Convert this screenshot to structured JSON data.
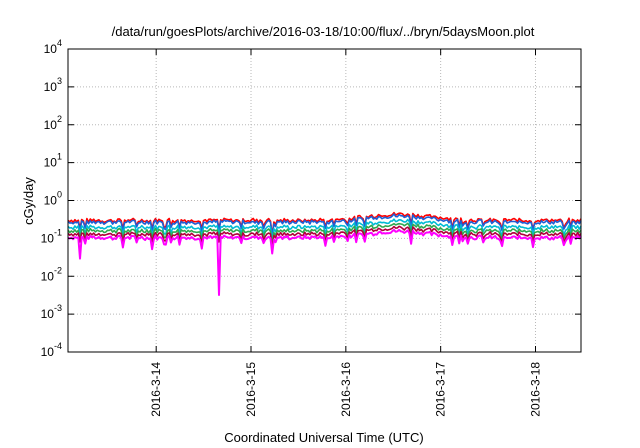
{
  "chart_data": {
    "type": "line",
    "title": "/data/run/goesPlots/archive/2016-03-18/10:00/flux/../bryn/5daysMoon.plot",
    "xlabel": "Coordinated Universal Time (UTC)",
    "ylabel": "cGy/day",
    "yscale": "log",
    "ylim": [
      0.0001,
      10000
    ],
    "xlim": [
      -0.93,
      4.48
    ],
    "x_origin": "2016-03-14",
    "grid": true,
    "y_ticks": [
      {
        "base": "10",
        "exp": "-4",
        "value": 0.0001
      },
      {
        "base": "10",
        "exp": "-3",
        "value": 0.001
      },
      {
        "base": "10",
        "exp": "-2",
        "value": 0.01
      },
      {
        "base": "10",
        "exp": "-1",
        "value": 0.1
      },
      {
        "base": "10",
        "exp": "0",
        "value": 1
      },
      {
        "base": "10",
        "exp": "1",
        "value": 10
      },
      {
        "base": "10",
        "exp": "2",
        "value": 100
      },
      {
        "base": "10",
        "exp": "3",
        "value": 1000
      },
      {
        "base": "10",
        "exp": "4",
        "value": 10000
      }
    ],
    "x_ticks": [
      {
        "label": "2016-3-14",
        "value": 0
      },
      {
        "label": "2016-3-15",
        "value": 1
      },
      {
        "label": "2016-3-16",
        "value": 2
      },
      {
        "label": "2016-3-17",
        "value": 3
      },
      {
        "label": "2016-3-18",
        "value": 4
      }
    ],
    "series_style": [
      {
        "color": "#ff0000",
        "base": 0.3
      },
      {
        "color": "#1e5fd6",
        "base": 0.27
      },
      {
        "color": "#00bcd4",
        "base": 0.2
      },
      {
        "color": "#2fa84f",
        "base": 0.16
      },
      {
        "color": "#b0003a",
        "base": 0.13
      },
      {
        "color": "#ff00ff",
        "base": 0.105
      }
    ],
    "dips": [
      {
        "x": -0.8,
        "factor": 0.28
      },
      {
        "x": -0.36,
        "factor": 0.55
      },
      {
        "x": -0.05,
        "factor": 0.5
      },
      {
        "x": 0.48,
        "factor": 0.5
      },
      {
        "x": 0.66,
        "factor": 0.03
      },
      {
        "x": 1.22,
        "factor": 0.55
      },
      {
        "x": 1.78,
        "factor": 0.55
      },
      {
        "x": 2.2,
        "factor": 0.6
      },
      {
        "x": 2.68,
        "factor": 0.55
      },
      {
        "x": 3.12,
        "factor": 0.6
      },
      {
        "x": 3.64,
        "factor": 0.6
      },
      {
        "x": 3.98,
        "factor": 0.55
      },
      {
        "x": 4.3,
        "factor": 0.6
      }
    ],
    "hump": {
      "center": 2.55,
      "width": 0.45,
      "gain": 0.45
    }
  }
}
